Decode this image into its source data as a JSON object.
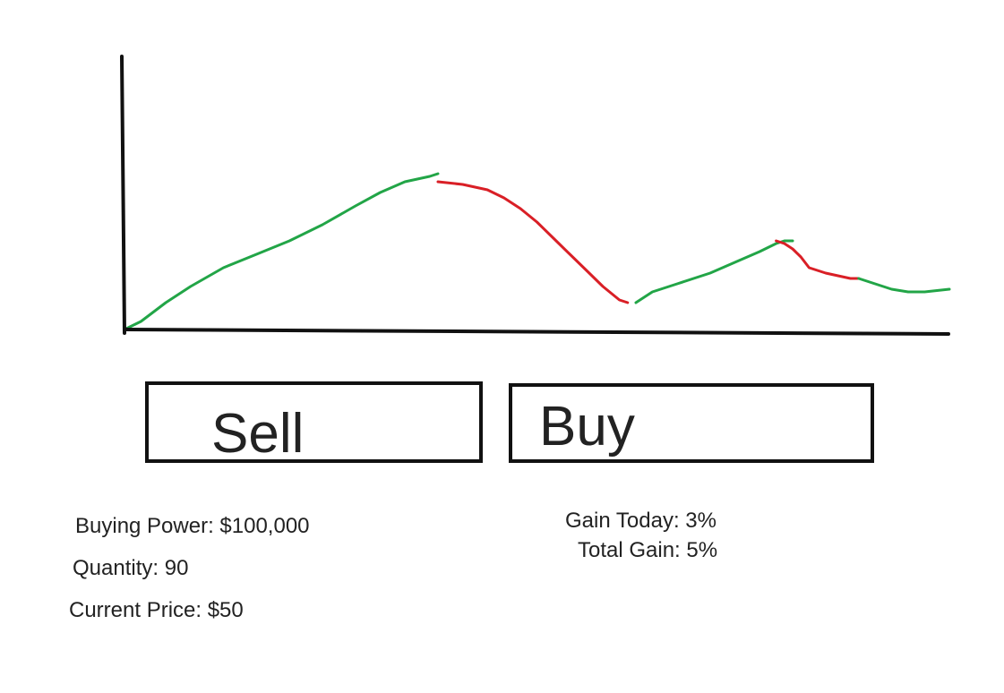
{
  "chart_data": {
    "type": "line",
    "title": "",
    "xlabel": "",
    "ylabel": "",
    "xlim": [
      0,
      100
    ],
    "ylim": [
      0,
      100
    ],
    "grid": false,
    "legend": "none",
    "colors": {
      "up": "#22a547",
      "down": "#d91f26",
      "axis": "#111111"
    },
    "series": [
      {
        "direction": "up",
        "points": [
          [
            0,
            0
          ],
          [
            2,
            3
          ],
          [
            5,
            10
          ],
          [
            8,
            16
          ],
          [
            12,
            23
          ],
          [
            16,
            28
          ],
          [
            20,
            33
          ],
          [
            24,
            39
          ],
          [
            28,
            46
          ],
          [
            31,
            51
          ],
          [
            34,
            55
          ],
          [
            37,
            57
          ],
          [
            38,
            58
          ]
        ]
      },
      {
        "direction": "down",
        "points": [
          [
            38,
            55
          ],
          [
            41,
            54
          ],
          [
            44,
            52
          ],
          [
            46,
            49
          ],
          [
            48,
            45
          ],
          [
            50,
            40
          ],
          [
            52,
            34
          ],
          [
            54,
            28
          ],
          [
            56,
            22
          ],
          [
            58,
            16
          ],
          [
            60,
            11
          ],
          [
            61,
            10
          ]
        ]
      },
      {
        "direction": "up",
        "points": [
          [
            62,
            10
          ],
          [
            64,
            14
          ],
          [
            67,
            17
          ],
          [
            71,
            21
          ],
          [
            74,
            25
          ],
          [
            77,
            29
          ],
          [
            79,
            32
          ],
          [
            80,
            33
          ],
          [
            81,
            33
          ]
        ]
      },
      {
        "direction": "down",
        "points": [
          [
            79,
            33
          ],
          [
            80,
            32
          ],
          [
            81,
            30
          ],
          [
            82,
            27
          ],
          [
            83,
            23
          ],
          [
            85,
            21
          ],
          [
            88,
            19
          ],
          [
            89,
            19
          ]
        ]
      },
      {
        "direction": "up",
        "points": [
          [
            89,
            19
          ],
          [
            91,
            17
          ],
          [
            93,
            15
          ],
          [
            95,
            14
          ],
          [
            97,
            14
          ],
          [
            100,
            15
          ]
        ]
      }
    ]
  },
  "buttons": {
    "sell_label": "Sell",
    "buy_label": "Buy"
  },
  "account": {
    "buying_power": "Buying Power: $100,000",
    "quantity": "Quantity: 90",
    "current_price": "Current Price: $50"
  },
  "gains": {
    "gain_today": "Gain Today: 3%",
    "total_gain": "Total Gain: 5%"
  }
}
